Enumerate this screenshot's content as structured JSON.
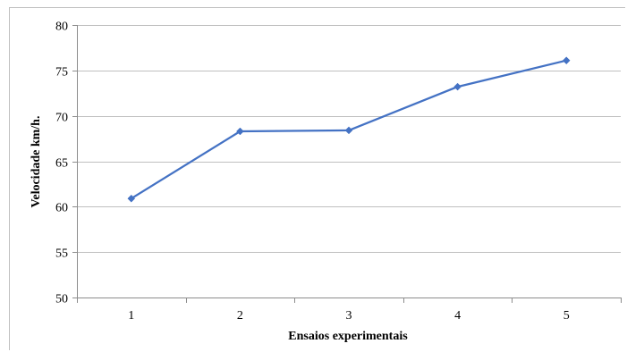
{
  "chart_data": {
    "type": "line",
    "title": "",
    "xlabel": "Ensaios experimentais",
    "ylabel": "Velocidade km/h.",
    "categories": [
      "1",
      "2",
      "3",
      "4",
      "5"
    ],
    "series": [
      {
        "values": [
          60.9,
          68.3,
          68.4,
          73.2,
          76.1
        ],
        "color": "#4472c4",
        "marker": "diamond"
      }
    ],
    "ylim": [
      50,
      80
    ],
    "yticks": [
      50,
      55,
      60,
      65,
      70,
      75,
      80
    ],
    "grid": true,
    "legend": "none"
  }
}
